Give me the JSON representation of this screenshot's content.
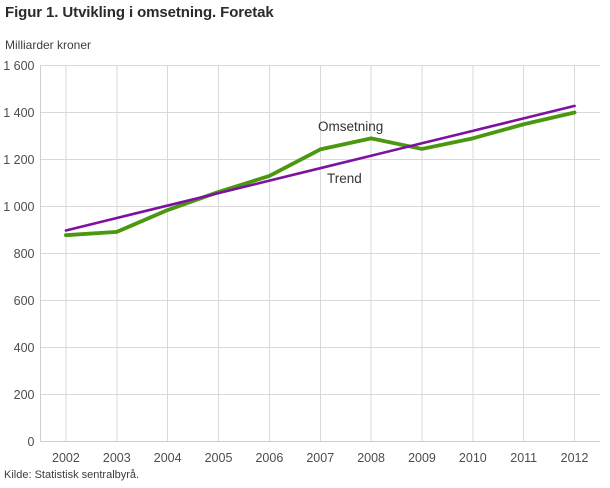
{
  "figure": {
    "title": "Figur 1. Utvikling i omsetning. Foretak",
    "unit_label": "Milliarder kroner",
    "source": "Kilde: Statistisk sentralbyrå."
  },
  "chart_data": {
    "type": "line",
    "title": "Figur 1. Utvikling i omsetning. Foretak",
    "ylabel": "Milliarder kroner",
    "xlabel": "",
    "categories": [
      "2002",
      "2003",
      "2004",
      "2005",
      "2006",
      "2007",
      "2008",
      "2009",
      "2010",
      "2011",
      "2012"
    ],
    "series": [
      {
        "name": "Omsetning",
        "color": "#4a980f",
        "line_width": 3.8,
        "values": [
          878,
          892,
          985,
          1062,
          1130,
          1243,
          1290,
          1245,
          1290,
          1350,
          1400
        ]
      },
      {
        "name": "Trend",
        "color": "#7e12a0",
        "line_width": 2.6,
        "values": [
          898,
          951,
          1004,
          1057,
          1110,
          1163,
          1216,
          1269,
          1322,
          1375,
          1428
        ]
      }
    ],
    "ylim": [
      0,
      1600
    ],
    "ytick_step": 200,
    "ytick_labels": [
      "0",
      "200",
      "400",
      "600",
      "800",
      "1 000",
      "1 200",
      "1 400",
      "1 600"
    ],
    "grid": true,
    "legend": "inline-annotations",
    "annotations": [
      {
        "text": "Omsetning"
      },
      {
        "text": "Trend"
      }
    ],
    "style": {
      "grid_color": "#d9d9d9",
      "axis_color": "#cfcfcf",
      "tick_color": "#4d4d4d",
      "annotation_color": "#333333",
      "background": "#ffffff"
    }
  }
}
